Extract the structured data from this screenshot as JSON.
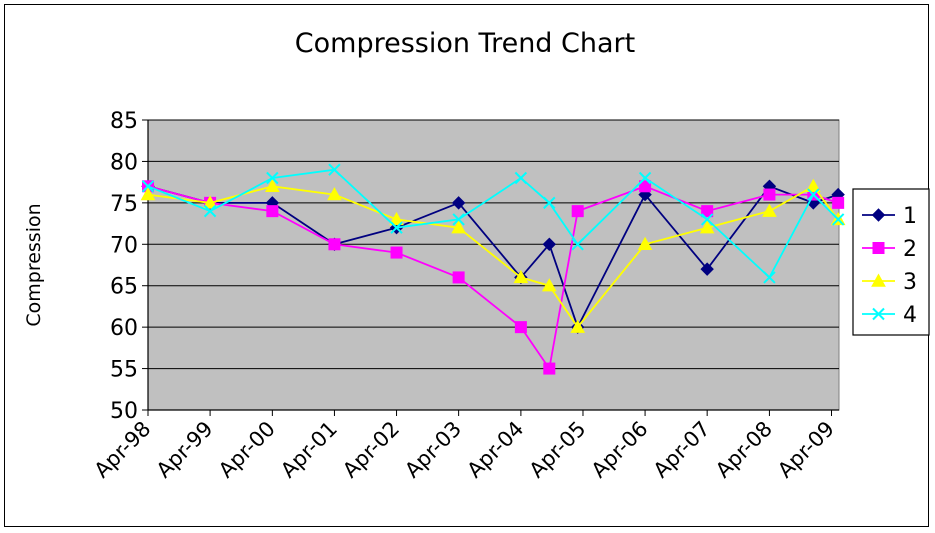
{
  "chart_data": {
    "type": "line",
    "title": "Compression Trend Chart",
    "xlabel": "",
    "ylabel": "Compression",
    "ylim": [
      50,
      85
    ],
    "yticks": [
      50,
      55,
      60,
      65,
      70,
      75,
      80,
      85
    ],
    "x_ticks": [
      "Apr-98",
      "Apr-99",
      "Apr-00",
      "Apr-01",
      "Apr-02",
      "Apr-03",
      "Apr-04",
      "Apr-05",
      "Apr-06",
      "Apr-07",
      "Apr-08",
      "Apr-09"
    ],
    "x_tick_dates": [
      "1998-04-01",
      "1999-04-01",
      "2000-04-01",
      "2001-04-01",
      "2002-04-01",
      "2003-04-01",
      "2004-04-01",
      "2005-04-01",
      "2006-04-01",
      "2007-04-01",
      "2008-04-01",
      "2009-04-01"
    ],
    "xlim": [
      "1998-04-01",
      "2009-05-15"
    ],
    "grid": "horizontal",
    "plot_background": "#c0c0c0",
    "legend_position": "right",
    "series": [
      {
        "name": "1",
        "color": "#000080",
        "marker": "diamond",
        "points": [
          [
            "1998-04-01",
            77
          ],
          [
            "1999-04-01",
            75
          ],
          [
            "2000-04-01",
            75
          ],
          [
            "2001-04-01",
            70
          ],
          [
            "2002-04-01",
            72
          ],
          [
            "2003-04-01",
            75
          ],
          [
            "2004-04-01",
            66
          ],
          [
            "2004-09-15",
            70
          ],
          [
            "2005-03-01",
            60
          ],
          [
            "2006-04-01",
            76
          ],
          [
            "2007-04-01",
            67
          ],
          [
            "2008-04-01",
            77
          ],
          [
            "2008-12-15",
            75
          ],
          [
            "2009-05-10",
            76
          ]
        ]
      },
      {
        "name": "2",
        "color": "#ff00ff",
        "marker": "square",
        "points": [
          [
            "1998-04-01",
            77
          ],
          [
            "1999-04-01",
            75
          ],
          [
            "2000-04-01",
            74
          ],
          [
            "2001-04-01",
            70
          ],
          [
            "2002-04-01",
            69
          ],
          [
            "2003-04-01",
            66
          ],
          [
            "2004-04-01",
            60
          ],
          [
            "2004-09-15",
            55
          ],
          [
            "2005-03-01",
            74
          ],
          [
            "2006-04-01",
            77
          ],
          [
            "2007-04-01",
            74
          ],
          [
            "2008-04-01",
            76
          ],
          [
            "2008-12-15",
            76
          ],
          [
            "2009-05-10",
            75
          ]
        ]
      },
      {
        "name": "3",
        "color": "#ffff00",
        "marker": "triangle",
        "points": [
          [
            "1998-04-01",
            76
          ],
          [
            "1999-04-01",
            75
          ],
          [
            "2000-04-01",
            77
          ],
          [
            "2001-04-01",
            76
          ],
          [
            "2002-04-01",
            73
          ],
          [
            "2003-04-01",
            72
          ],
          [
            "2004-04-01",
            66
          ],
          [
            "2004-09-15",
            65
          ],
          [
            "2005-03-01",
            60
          ],
          [
            "2006-04-01",
            70
          ],
          [
            "2007-04-01",
            72
          ],
          [
            "2008-04-01",
            74
          ],
          [
            "2008-12-15",
            77
          ],
          [
            "2009-05-10",
            73
          ]
        ]
      },
      {
        "name": "4",
        "color": "#00ffff",
        "marker": "x",
        "points": [
          [
            "1998-04-01",
            77
          ],
          [
            "1999-04-01",
            74
          ],
          [
            "2000-04-01",
            78
          ],
          [
            "2001-04-01",
            79
          ],
          [
            "2002-04-01",
            72
          ],
          [
            "2003-04-01",
            73
          ],
          [
            "2004-04-01",
            78
          ],
          [
            "2004-09-15",
            75
          ],
          [
            "2005-03-01",
            70
          ],
          [
            "2006-04-01",
            78
          ],
          [
            "2007-04-01",
            73
          ],
          [
            "2008-04-01",
            66
          ],
          [
            "2008-12-15",
            76
          ],
          [
            "2009-05-10",
            73
          ]
        ]
      }
    ]
  }
}
